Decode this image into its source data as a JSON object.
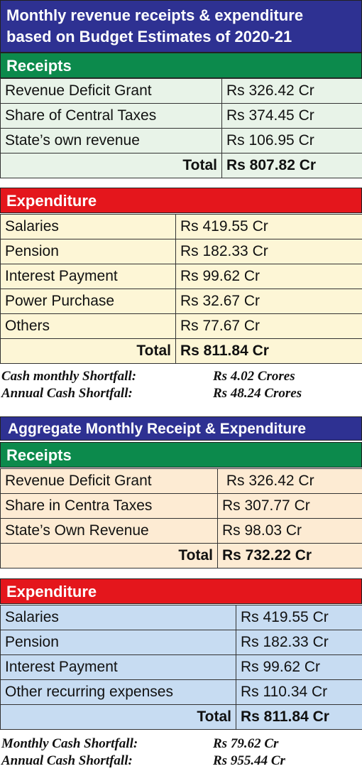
{
  "section1": {
    "title_line1": "Monthly revenue receipts & expenditure",
    "title_line2": "based on Budget Estimates of 2020-21",
    "receipts_header": "Receipts",
    "receipts": [
      {
        "label": "Revenue Deficit Grant",
        "value": "Rs 326.42 Cr"
      },
      {
        "label": "Share of Central Taxes",
        "value": "Rs 374.45 Cr"
      },
      {
        "label": "State’s own revenue",
        "value": "Rs 106.95 Cr"
      }
    ],
    "receipts_total_label": "Total",
    "receipts_total_value": "Rs 807.82 Cr",
    "expenditure_header": "Expenditure",
    "expenditure": [
      {
        "label": "Salaries",
        "value": "Rs 419.55 Cr"
      },
      {
        "label": "Pension",
        "value": "Rs 182.33 Cr"
      },
      {
        "label": "Interest Payment",
        "value": "Rs 99.62 Cr"
      },
      {
        "label": "Power Purchase",
        "value": "Rs 32.67 Cr"
      },
      {
        "label": "Others",
        "value": "Rs 77.67 Cr"
      }
    ],
    "expenditure_total_label": "Total",
    "expenditure_total_value": "Rs 811.84 Cr",
    "shortfall": [
      {
        "label": "Cash monthly Shortfall:",
        "value": "Rs 4.02 Crores"
      },
      {
        "label": "Annual Cash Shortfall:",
        "value": "Rs 48.24 Crores"
      }
    ]
  },
  "section2": {
    "title": "Aggregate Monthly Receipt & Expenditure",
    "receipts_header": "Receipts",
    "receipts": [
      {
        "label": "Revenue Deficit Grant",
        "value": " Rs 326.42 Cr"
      },
      {
        "label": "Share in Centra Taxes",
        "value": "Rs 307.77 Cr"
      },
      {
        "label": "State’s Own Revenue",
        "value": "Rs 98.03 Cr"
      }
    ],
    "receipts_total_label": "Total",
    "receipts_total_value": "Rs 732.22 Cr",
    "expenditure_header": "Expenditure",
    "expenditure": [
      {
        "label": "Salaries",
        "value": "Rs 419.55 Cr"
      },
      {
        "label": "Pension",
        "value": "Rs 182.33 Cr"
      },
      {
        "label": "Interest Payment",
        "value": "Rs 99.62 Cr"
      },
      {
        "label": "Other recurring expenses",
        "value": "Rs 110.34 Cr"
      }
    ],
    "expenditure_total_label": "Total",
    "expenditure_total_value": "Rs 811.84 Cr",
    "shortfall": [
      {
        "label": "Monthly Cash Shortfall:",
        "value": "Rs 79.62 Cr"
      },
      {
        "label": "Annual Cash Shortfall:",
        "value": "Rs 955.44 Cr"
      }
    ]
  }
}
